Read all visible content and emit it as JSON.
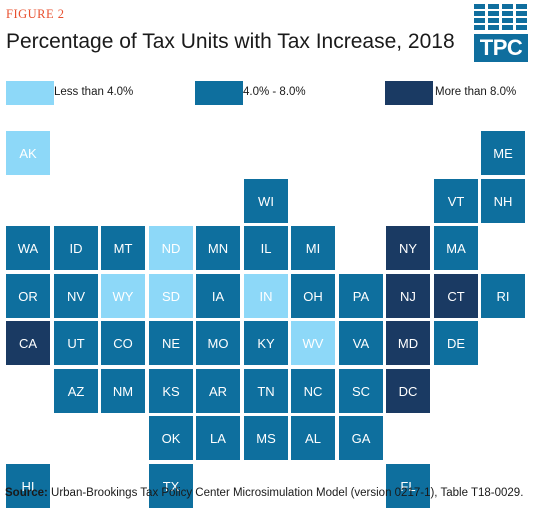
{
  "figure_label": "FIGURE 2",
  "title": "Percentage of Tax Units with Tax Increase, 2018",
  "logo_text": "TPC",
  "colors": {
    "low": "#8dd8f8",
    "mid": "#0e6f9e",
    "high": "#1a3a63",
    "accent": "#e8502f"
  },
  "legend": [
    {
      "key": "low",
      "label": "Less than 4.0%"
    },
    {
      "key": "mid",
      "label": "4.0% - 8.0%"
    },
    {
      "key": "high",
      "label": "More than 8.0%"
    }
  ],
  "chart_data": {
    "type": "tile-map",
    "title": "Percentage of Tax Units with Tax Increase, 2018",
    "categories": [
      "Less than 4.0%",
      "4.0% - 8.0%",
      "More than 8.0%"
    ],
    "states": [
      {
        "abbr": "AK",
        "category": "low",
        "row": 0,
        "col": 0
      },
      {
        "abbr": "ME",
        "category": "mid",
        "row": 0,
        "col": 10
      },
      {
        "abbr": "WI",
        "category": "mid",
        "row": 1,
        "col": 5
      },
      {
        "abbr": "VT",
        "category": "mid",
        "row": 1,
        "col": 9
      },
      {
        "abbr": "NH",
        "category": "mid",
        "row": 1,
        "col": 10
      },
      {
        "abbr": "WA",
        "category": "mid",
        "row": 2,
        "col": 0
      },
      {
        "abbr": "ID",
        "category": "mid",
        "row": 2,
        "col": 1
      },
      {
        "abbr": "MT",
        "category": "mid",
        "row": 2,
        "col": 2
      },
      {
        "abbr": "ND",
        "category": "low",
        "row": 2,
        "col": 3
      },
      {
        "abbr": "MN",
        "category": "mid",
        "row": 2,
        "col": 4
      },
      {
        "abbr": "IL",
        "category": "mid",
        "row": 2,
        "col": 5
      },
      {
        "abbr": "MI",
        "category": "mid",
        "row": 2,
        "col": 6
      },
      {
        "abbr": "NY",
        "category": "high",
        "row": 2,
        "col": 8
      },
      {
        "abbr": "MA",
        "category": "mid",
        "row": 2,
        "col": 9
      },
      {
        "abbr": "OR",
        "category": "mid",
        "row": 3,
        "col": 0
      },
      {
        "abbr": "NV",
        "category": "mid",
        "row": 3,
        "col": 1
      },
      {
        "abbr": "WY",
        "category": "low",
        "row": 3,
        "col": 2
      },
      {
        "abbr": "SD",
        "category": "low",
        "row": 3,
        "col": 3
      },
      {
        "abbr": "IA",
        "category": "mid",
        "row": 3,
        "col": 4
      },
      {
        "abbr": "IN",
        "category": "low",
        "row": 3,
        "col": 5
      },
      {
        "abbr": "OH",
        "category": "mid",
        "row": 3,
        "col": 6
      },
      {
        "abbr": "PA",
        "category": "mid",
        "row": 3,
        "col": 7
      },
      {
        "abbr": "NJ",
        "category": "high",
        "row": 3,
        "col": 8
      },
      {
        "abbr": "CT",
        "category": "high",
        "row": 3,
        "col": 9
      },
      {
        "abbr": "RI",
        "category": "mid",
        "row": 3,
        "col": 10
      },
      {
        "abbr": "CA",
        "category": "high",
        "row": 4,
        "col": 0
      },
      {
        "abbr": "UT",
        "category": "mid",
        "row": 4,
        "col": 1
      },
      {
        "abbr": "CO",
        "category": "mid",
        "row": 4,
        "col": 2
      },
      {
        "abbr": "NE",
        "category": "mid",
        "row": 4,
        "col": 3
      },
      {
        "abbr": "MO",
        "category": "mid",
        "row": 4,
        "col": 4
      },
      {
        "abbr": "KY",
        "category": "mid",
        "row": 4,
        "col": 5
      },
      {
        "abbr": "WV",
        "category": "low",
        "row": 4,
        "col": 6
      },
      {
        "abbr": "VA",
        "category": "mid",
        "row": 4,
        "col": 7
      },
      {
        "abbr": "MD",
        "category": "high",
        "row": 4,
        "col": 8
      },
      {
        "abbr": "DE",
        "category": "mid",
        "row": 4,
        "col": 9
      },
      {
        "abbr": "AZ",
        "category": "mid",
        "row": 5,
        "col": 1
      },
      {
        "abbr": "NM",
        "category": "mid",
        "row": 5,
        "col": 2
      },
      {
        "abbr": "KS",
        "category": "mid",
        "row": 5,
        "col": 3
      },
      {
        "abbr": "AR",
        "category": "mid",
        "row": 5,
        "col": 4
      },
      {
        "abbr": "TN",
        "category": "mid",
        "row": 5,
        "col": 5
      },
      {
        "abbr": "NC",
        "category": "mid",
        "row": 5,
        "col": 6
      },
      {
        "abbr": "SC",
        "category": "mid",
        "row": 5,
        "col": 7
      },
      {
        "abbr": "DC",
        "category": "high",
        "row": 5,
        "col": 8
      },
      {
        "abbr": "OK",
        "category": "mid",
        "row": 6,
        "col": 3
      },
      {
        "abbr": "LA",
        "category": "mid",
        "row": 6,
        "col": 4
      },
      {
        "abbr": "MS",
        "category": "mid",
        "row": 6,
        "col": 5
      },
      {
        "abbr": "AL",
        "category": "mid",
        "row": 6,
        "col": 6
      },
      {
        "abbr": "GA",
        "category": "mid",
        "row": 6,
        "col": 7
      },
      {
        "abbr": "HI",
        "category": "mid",
        "row": 7,
        "col": 0
      },
      {
        "abbr": "TX",
        "category": "mid",
        "row": 7,
        "col": 3
      },
      {
        "abbr": "FL",
        "category": "mid",
        "row": 7,
        "col": 8
      }
    ]
  },
  "source": {
    "label": "Source:",
    "text": " Urban-Brookings Tax Policy Center Microsimulation Model (version 0217-1), Table T18-0029."
  }
}
